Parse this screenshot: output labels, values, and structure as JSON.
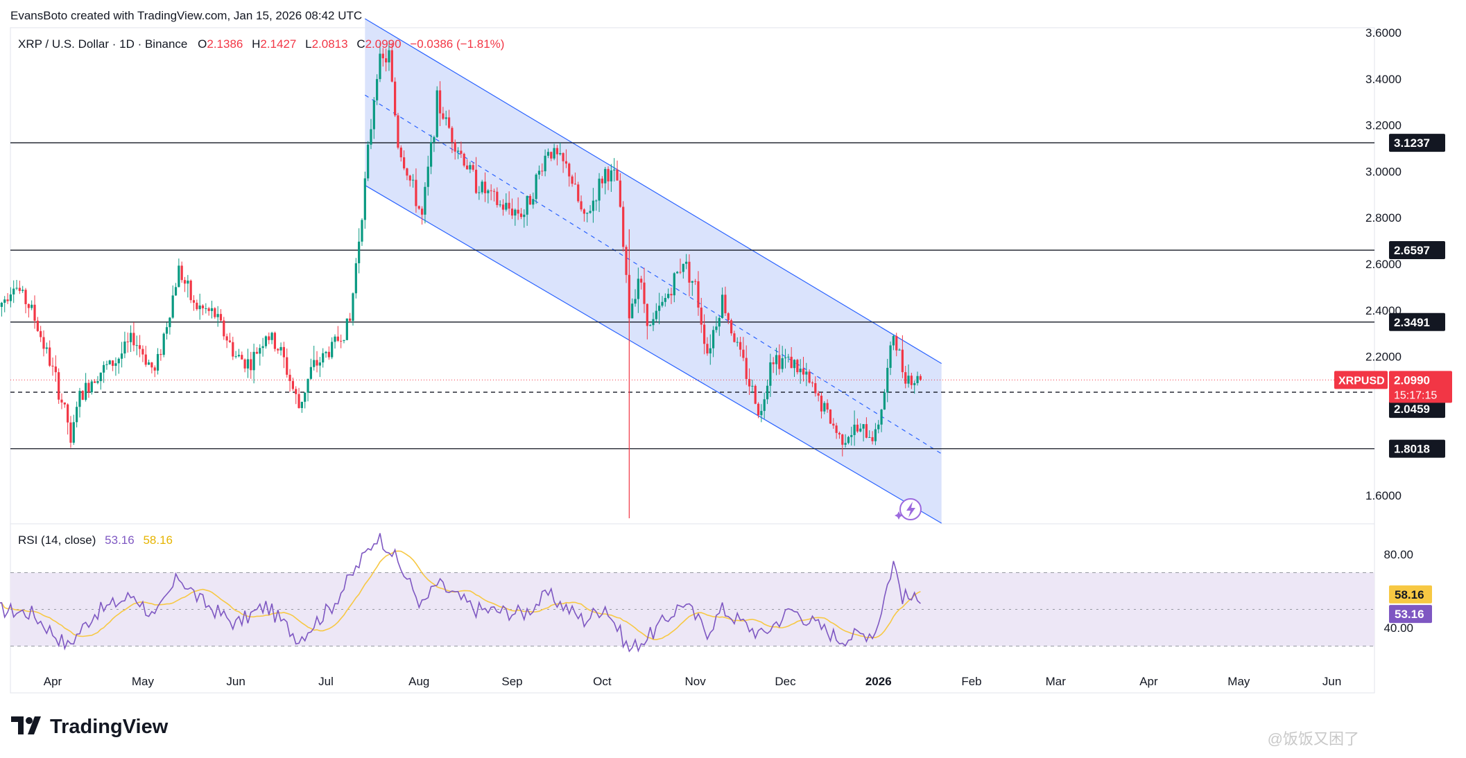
{
  "header": {
    "attribution": "EvansBoto created with TradingView.com, Jan 15, 2026 08:42 UTC"
  },
  "legend": {
    "symbol": "XRP / U.S. Dollar · 1D · Binance",
    "o_label": "O",
    "o_value": "2.1386",
    "h_label": "H",
    "h_value": "2.1427",
    "l_label": "L",
    "l_value": "2.0813",
    "c_label": "C",
    "c_value": "2.0990",
    "change": "−0.0386 (−1.81%)"
  },
  "rsi_legend": {
    "label": "RSI (14, close)",
    "rsi_value": "53.16",
    "ma_value": "58.16"
  },
  "footer": {
    "logo_text": "TradingView",
    "watermark": "@饭饭又困了"
  },
  "colors": {
    "up": "#089981",
    "down": "#f23645",
    "channel_fill": "#d4defc",
    "channel_line": "#2962ff",
    "rsi_line": "#7e57c2",
    "rsi_ma": "#f7c843",
    "rsi_band": "#ede7f6"
  },
  "chart_data": {
    "type": "candlestick",
    "price_axis": {
      "ticks": [
        "3.6000",
        "3.4000",
        "3.2000",
        "3.0000",
        "2.8000",
        "2.6000",
        "2.4000",
        "2.2000",
        "1.6000"
      ],
      "range": [
        1.49,
        3.62
      ]
    },
    "time_axis": {
      "labels": [
        "Apr",
        "May",
        "Jun",
        "Jul",
        "Aug",
        "Sep",
        "Oct",
        "Nov",
        "Dec",
        "2026",
        "Feb",
        "Mar",
        "Apr",
        "May",
        "Jun"
      ]
    },
    "horizontal_levels": [
      {
        "value": 3.1237,
        "label": "3.1237"
      },
      {
        "value": 2.6597,
        "label": "2.6597"
      },
      {
        "value": 2.3491,
        "label": "2.3491"
      },
      {
        "value": 1.8018,
        "label": "1.8018"
      }
    ],
    "dashed_level": {
      "value": 2.0459,
      "label": "2.0459"
    },
    "last_price": {
      "symbol": "XRPUSD",
      "value": "2.0990",
      "countdown": "15:17:15"
    },
    "regression_channel": {
      "start_date": "Jul 14 2025",
      "end_date": "Jan 22 2026",
      "upper": [
        3.66,
        2.17
      ],
      "mid": [
        3.33,
        1.78
      ],
      "lower": [
        2.94,
        1.48
      ]
    },
    "price_path": [
      {
        "date": "Mar 14",
        "close": 2.41
      },
      {
        "date": "Mar 19",
        "close": 2.52
      },
      {
        "date": "Mar 25",
        "close": 2.4
      },
      {
        "date": "Apr 01",
        "close": 2.14
      },
      {
        "date": "Apr 06",
        "close": 1.92
      },
      {
        "date": "Apr 07",
        "close": 1.8
      },
      {
        "date": "Apr 09",
        "close": 2.0
      },
      {
        "date": "Apr 15",
        "close": 2.12
      },
      {
        "date": "Apr 22",
        "close": 2.18
      },
      {
        "date": "Apr 28",
        "close": 2.28
      },
      {
        "date": "May 05",
        "close": 2.13
      },
      {
        "date": "May 10",
        "close": 2.4
      },
      {
        "date": "May 13",
        "close": 2.58
      },
      {
        "date": "May 18",
        "close": 2.42
      },
      {
        "date": "May 25",
        "close": 2.38
      },
      {
        "date": "Jun 01",
        "close": 2.2
      },
      {
        "date": "Jun 06",
        "close": 2.17
      },
      {
        "date": "Jun 11",
        "close": 2.3
      },
      {
        "date": "Jun 16",
        "close": 2.22
      },
      {
        "date": "Jun 22",
        "close": 1.98
      },
      {
        "date": "Jun 26",
        "close": 2.14
      },
      {
        "date": "Jul 03",
        "close": 2.24
      },
      {
        "date": "Jul 09",
        "close": 2.35
      },
      {
        "date": "Jul 11",
        "close": 2.6
      },
      {
        "date": "Jul 14",
        "close": 2.95
      },
      {
        "date": "Jul 18",
        "close": 3.45
      },
      {
        "date": "Jul 22",
        "close": 3.5
      },
      {
        "date": "Jul 25",
        "close": 3.12
      },
      {
        "date": "Aug 02",
        "close": 2.8
      },
      {
        "date": "Aug 07",
        "close": 3.3
      },
      {
        "date": "Aug 14",
        "close": 3.1
      },
      {
        "date": "Aug 20",
        "close": 2.95
      },
      {
        "date": "Aug 28",
        "close": 2.85
      },
      {
        "date": "Sep 05",
        "close": 2.82
      },
      {
        "date": "Sep 13",
        "close": 3.1
      },
      {
        "date": "Sep 20",
        "close": 3.0
      },
      {
        "date": "Sep 25",
        "close": 2.78
      },
      {
        "date": "Oct 02",
        "close": 3.0
      },
      {
        "date": "Oct 06",
        "close": 2.96
      },
      {
        "date": "Oct 10",
        "close": 2.38
      },
      {
        "date": "Oct 13",
        "close": 2.55
      },
      {
        "date": "Oct 17",
        "close": 2.32
      },
      {
        "date": "Oct 24",
        "close": 2.5
      },
      {
        "date": "Oct 28",
        "close": 2.62
      },
      {
        "date": "Nov 01",
        "close": 2.5
      },
      {
        "date": "Nov 05",
        "close": 2.22
      },
      {
        "date": "Nov 10",
        "close": 2.45
      },
      {
        "date": "Nov 14",
        "close": 2.28
      },
      {
        "date": "Nov 20",
        "close": 2.05
      },
      {
        "date": "Nov 23",
        "close": 1.95
      },
      {
        "date": "Nov 26",
        "close": 2.2
      },
      {
        "date": "Dec 03",
        "close": 2.18
      },
      {
        "date": "Dec 08",
        "close": 2.1
      },
      {
        "date": "Dec 15",
        "close": 1.95
      },
      {
        "date": "Dec 19",
        "close": 1.85
      },
      {
        "date": "Dec 24",
        "close": 1.88
      },
      {
        "date": "Dec 31",
        "close": 1.86
      },
      {
        "date": "Jan 03",
        "close": 2.05
      },
      {
        "date": "Jan 06",
        "close": 2.3
      },
      {
        "date": "Jan 09",
        "close": 2.15
      },
      {
        "date": "Jan 12",
        "close": 2.1
      },
      {
        "date": "Jan 15",
        "close": 2.099
      }
    ],
    "rsi_axis": {
      "ticks": [
        "80.00",
        "40.00"
      ],
      "upper_band": 70,
      "lower_band": 30
    },
    "rsi_path": [
      {
        "date": "Mar 14",
        "value": 50
      },
      {
        "date": "Mar 25",
        "value": 48
      },
      {
        "date": "Apr 06",
        "value": 30
      },
      {
        "date": "Apr 15",
        "value": 48
      },
      {
        "date": "Apr 28",
        "value": 58
      },
      {
        "date": "May 05",
        "value": 45
      },
      {
        "date": "May 13",
        "value": 68
      },
      {
        "date": "May 20",
        "value": 55
      },
      {
        "date": "Jun 01",
        "value": 42
      },
      {
        "date": "Jun 11",
        "value": 52
      },
      {
        "date": "Jun 22",
        "value": 34
      },
      {
        "date": "Jul 03",
        "value": 52
      },
      {
        "date": "Jul 11",
        "value": 72
      },
      {
        "date": "Jul 18",
        "value": 90
      },
      {
        "date": "Jul 22",
        "value": 84
      },
      {
        "date": "Aug 02",
        "value": 52
      },
      {
        "date": "Aug 07",
        "value": 64
      },
      {
        "date": "Aug 20",
        "value": 50
      },
      {
        "date": "Sep 05",
        "value": 48
      },
      {
        "date": "Sep 13",
        "value": 58
      },
      {
        "date": "Sep 25",
        "value": 44
      },
      {
        "date": "Oct 02",
        "value": 52
      },
      {
        "date": "Oct 10",
        "value": 28
      },
      {
        "date": "Oct 17",
        "value": 36
      },
      {
        "date": "Oct 28",
        "value": 54
      },
      {
        "date": "Nov 05",
        "value": 38
      },
      {
        "date": "Nov 10",
        "value": 50
      },
      {
        "date": "Nov 23",
        "value": 36
      },
      {
        "date": "Dec 03",
        "value": 50
      },
      {
        "date": "Dec 19",
        "value": 34
      },
      {
        "date": "Dec 31",
        "value": 38
      },
      {
        "date": "Jan 06",
        "value": 76
      },
      {
        "date": "Jan 09",
        "value": 57
      },
      {
        "date": "Jan 12",
        "value": 56
      },
      {
        "date": "Jan 15",
        "value": 53.16
      }
    ]
  }
}
